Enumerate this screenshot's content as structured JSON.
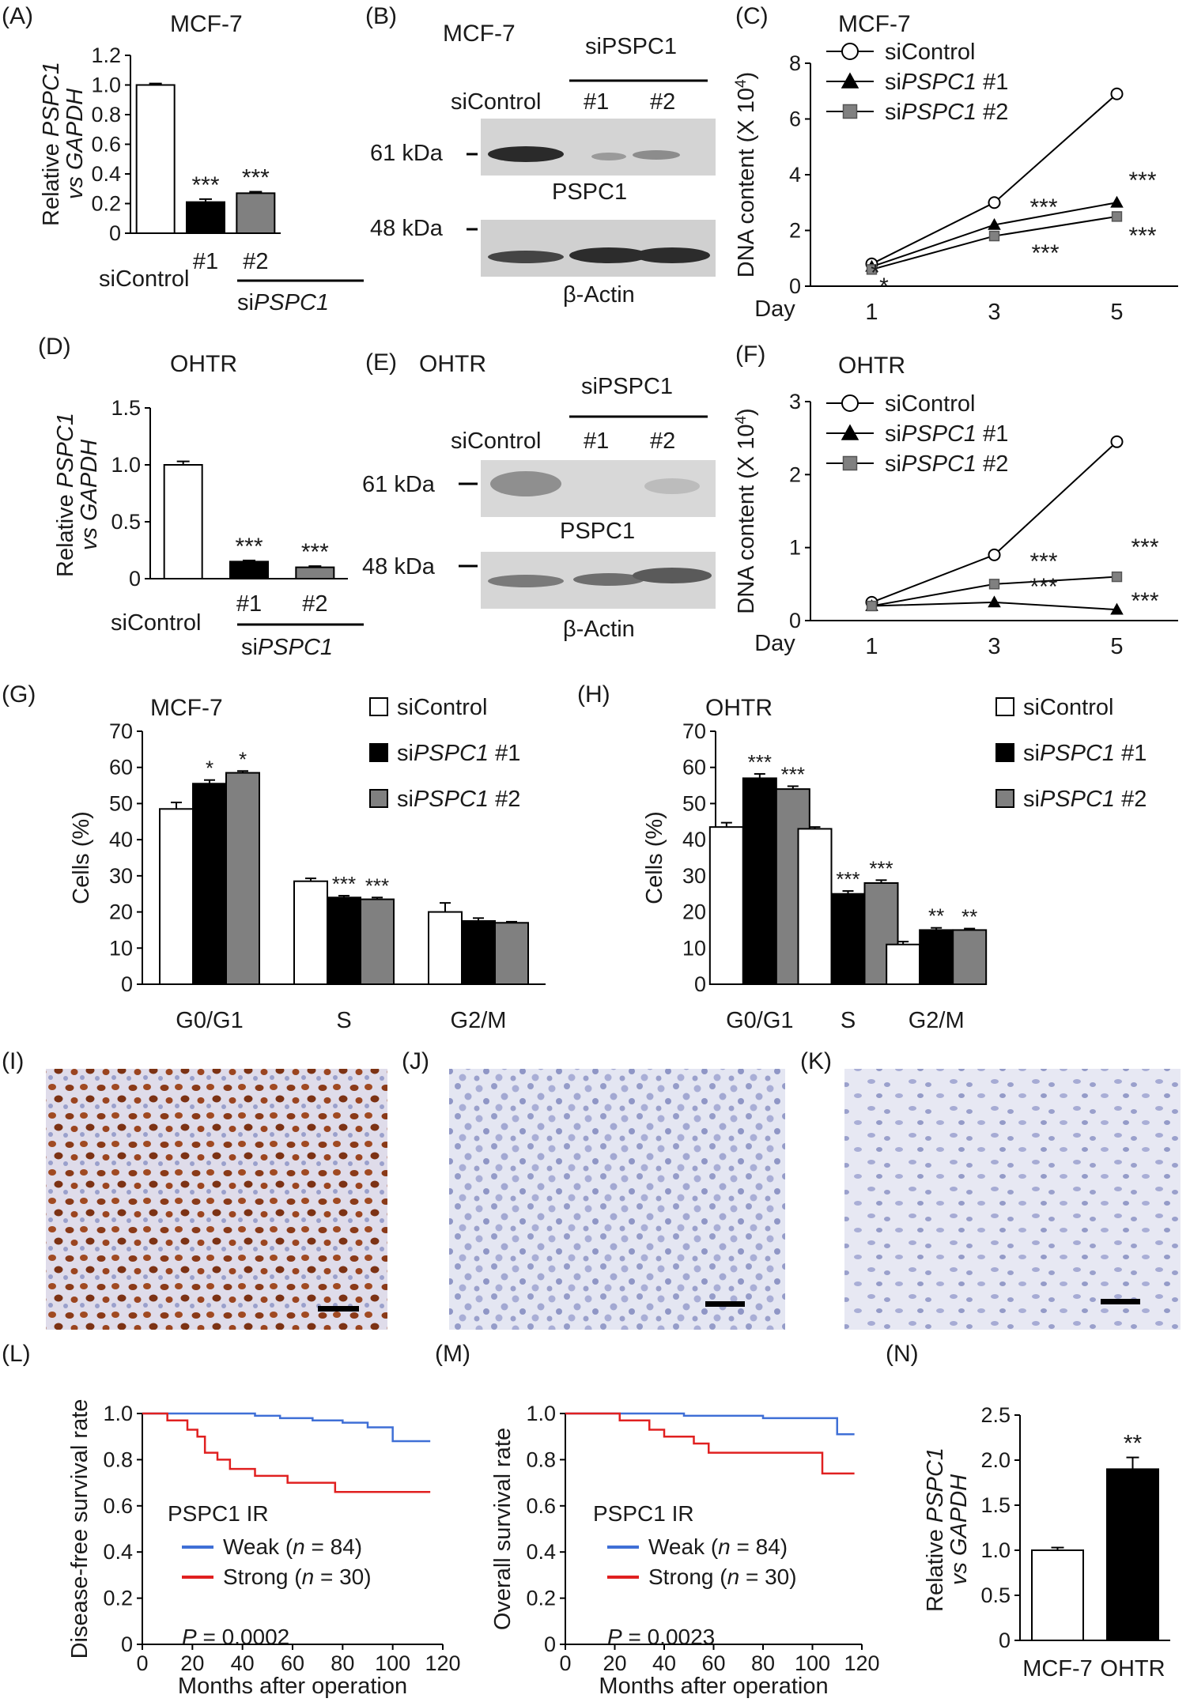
{
  "panels": {
    "A": {
      "label": "(A)",
      "title": "MCF-7"
    },
    "B": {
      "label": "(B)",
      "title": "MCF-7",
      "group_label": "siPSPC1",
      "lane_control": "siControl",
      "lane_1": "#1",
      "lane_2": "#2",
      "mw_top": "61 kDa",
      "mw_bottom": "48 kDa",
      "band_top": "PSPC1",
      "band_bottom": "β-Actin"
    },
    "C": {
      "label": "(C)"
    },
    "D": {
      "label": "(D)",
      "title": "OHTR"
    },
    "E": {
      "label": "(E)",
      "title": "OHTR",
      "group_label": "siPSPC1",
      "lane_control": "siControl",
      "lane_1": "#1",
      "lane_2": "#2",
      "mw_top": "61 kDa",
      "mw_bottom": "48 kDa",
      "band_top": "PSPC1",
      "band_bottom": "β-Actin"
    },
    "F": {
      "label": "(F)"
    },
    "G": {
      "label": "(G)"
    },
    "H": {
      "label": "(H)"
    },
    "I": {
      "label": "(I)"
    },
    "J": {
      "label": "(J)"
    },
    "K": {
      "label": "(K)"
    },
    "L": {
      "label": "(L)"
    },
    "M": {
      "label": "(M)"
    },
    "N": {
      "label": "(N)"
    }
  },
  "colors": {
    "black": "#000000",
    "gray": "#808080",
    "white": "#ffffff",
    "weak": "#3f6fd6",
    "strong": "#e02020",
    "ihc_bg": "#e4e6f2",
    "ihc_nuclei": "#8e95c8",
    "ihc_brown": "#8a3a18"
  },
  "chart_data": [
    {
      "id": "A",
      "type": "bar",
      "title": "MCF-7",
      "ylabel": "Relative PSPC1 vs GAPDH",
      "ylim": [
        0,
        1.2
      ],
      "yticks": [
        "0",
        "0.2",
        "0.4",
        "0.6",
        "0.8",
        "1.0",
        "1.2"
      ],
      "categories": [
        "siControl",
        "#1",
        "#2"
      ],
      "values": [
        1.0,
        0.21,
        0.27
      ],
      "errors": [
        0.01,
        0.02,
        0.01
      ],
      "stars": [
        "",
        "***",
        "***"
      ],
      "group_label": "siPSPC1",
      "control_label": "siControl"
    },
    {
      "id": "C",
      "type": "line",
      "title": "MCF-7",
      "ylabel": "DNA content (X 10^4)",
      "xlabel": "Day",
      "x": [
        1,
        3,
        5
      ],
      "ylim": [
        0,
        8
      ],
      "yticks": [
        "0",
        "2",
        "4",
        "6",
        "8"
      ],
      "series": [
        {
          "name": "siControl",
          "values": [
            0.8,
            3.0,
            6.9
          ]
        },
        {
          "name": "siPSPC1 #1",
          "values": [
            0.7,
            2.2,
            3.0
          ]
        },
        {
          "name": "siPSPC1 #2",
          "values": [
            0.6,
            1.8,
            2.5
          ]
        }
      ],
      "annotations": [
        "*",
        "*",
        "***",
        "***",
        "***",
        "***"
      ]
    },
    {
      "id": "D",
      "type": "bar",
      "title": "OHTR",
      "ylabel": "Relative PSPC1 vs GAPDH",
      "ylim": [
        0,
        1.5
      ],
      "yticks": [
        "0",
        "0.5",
        "1.0",
        "1.5"
      ],
      "categories": [
        "siControl",
        "#1",
        "#2"
      ],
      "values": [
        1.0,
        0.15,
        0.1
      ],
      "errors": [
        0.03,
        0.01,
        0.01
      ],
      "stars": [
        "",
        "***",
        "***"
      ],
      "group_label": "siPSPC1",
      "control_label": "siControl"
    },
    {
      "id": "F",
      "type": "line",
      "title": "OHTR",
      "ylabel": "DNA content (X 10^4)",
      "xlabel": "Day",
      "x": [
        1,
        3,
        5
      ],
      "ylim": [
        0,
        3
      ],
      "yticks": [
        "0",
        "1",
        "2",
        "3"
      ],
      "series": [
        {
          "name": "siControl",
          "values": [
            0.25,
            0.9,
            2.45
          ]
        },
        {
          "name": "siPSPC1 #1",
          "values": [
            0.2,
            0.25,
            0.15
          ]
        },
        {
          "name": "siPSPC1 #2",
          "values": [
            0.2,
            0.5,
            0.6
          ]
        }
      ],
      "annotations": [
        "***",
        "***",
        "***",
        "***"
      ]
    },
    {
      "id": "G",
      "type": "bar",
      "title": "MCF-7",
      "ylabel": "Cells (%)",
      "ylim": [
        0,
        70
      ],
      "yticks": [
        "0",
        "10",
        "20",
        "30",
        "40",
        "50",
        "60",
        "70"
      ],
      "categories": [
        "G0/G1",
        "S",
        "G2/M"
      ],
      "series": [
        {
          "name": "siControl",
          "values": [
            48.5,
            28.5,
            20
          ],
          "errors": [
            1.8,
            0.8,
            2.5
          ],
          "stars": [
            "",
            "",
            ""
          ]
        },
        {
          "name": "siPSPC1 #1",
          "values": [
            55.5,
            24,
            17.5
          ],
          "errors": [
            1,
            0.5,
            0.8
          ],
          "stars": [
            "*",
            "***",
            ""
          ]
        },
        {
          "name": "siPSPC1 #2",
          "values": [
            58.5,
            23.5,
            17
          ],
          "errors": [
            0.5,
            0.5,
            0.3
          ],
          "stars": [
            "*",
            "***",
            ""
          ]
        }
      ]
    },
    {
      "id": "H",
      "type": "bar",
      "title": "OHTR",
      "ylabel": "Cells (%)",
      "ylim": [
        0,
        70
      ],
      "yticks": [
        "0",
        "10",
        "20",
        "30",
        "40",
        "50",
        "60",
        "70"
      ],
      "categories": [
        "G0/G1",
        "S",
        "G2/M"
      ],
      "series": [
        {
          "name": "siControl",
          "values": [
            43.5,
            43,
            11
          ],
          "errors": [
            1.2,
            0.5,
            0.8
          ],
          "stars": [
            "",
            "",
            ""
          ]
        },
        {
          "name": "siPSPC1 #1",
          "values": [
            57,
            25,
            15
          ],
          "errors": [
            1.2,
            0.8,
            0.6
          ],
          "stars": [
            "***",
            "***",
            "**"
          ]
        },
        {
          "name": "siPSPC1 #2",
          "values": [
            54,
            28,
            15
          ],
          "errors": [
            0.8,
            0.8,
            0.4
          ],
          "stars": [
            "***",
            "***",
            "**"
          ]
        }
      ]
    },
    {
      "id": "L",
      "type": "line",
      "ylabel": "Disease-free survival rate",
      "xlabel": "Months after operation",
      "xlim": [
        0,
        120
      ],
      "ylim": [
        0,
        1.0
      ],
      "xticks": [
        "0",
        "20",
        "40",
        "60",
        "80",
        "100",
        "120"
      ],
      "yticks": [
        "0",
        "0.2",
        "0.4",
        "0.6",
        "0.8",
        "1.0"
      ],
      "legend_title": "PSPC1 IR",
      "pvalue": "P = 0.0002",
      "series": [
        {
          "name": "Weak (n = 84)",
          "steps": [
            [
              0,
              1.0
            ],
            [
              45,
              1.0
            ],
            [
              45,
              0.99
            ],
            [
              55,
              0.99
            ],
            [
              55,
              0.98
            ],
            [
              68,
              0.98
            ],
            [
              68,
              0.97
            ],
            [
              80,
              0.97
            ],
            [
              80,
              0.96
            ],
            [
              90,
              0.96
            ],
            [
              90,
              0.94
            ],
            [
              100,
              0.94
            ],
            [
              100,
              0.88
            ],
            [
              115,
              0.88
            ]
          ]
        },
        {
          "name": "Strong (n = 30)",
          "steps": [
            [
              0,
              1.0
            ],
            [
              10,
              1.0
            ],
            [
              10,
              0.97
            ],
            [
              18,
              0.97
            ],
            [
              18,
              0.93
            ],
            [
              22,
              0.93
            ],
            [
              22,
              0.9
            ],
            [
              25,
              0.9
            ],
            [
              25,
              0.83
            ],
            [
              30,
              0.83
            ],
            [
              30,
              0.8
            ],
            [
              35,
              0.8
            ],
            [
              35,
              0.76
            ],
            [
              45,
              0.76
            ],
            [
              45,
              0.73
            ],
            [
              58,
              0.73
            ],
            [
              58,
              0.7
            ],
            [
              77,
              0.7
            ],
            [
              77,
              0.66
            ],
            [
              115,
              0.66
            ]
          ]
        }
      ]
    },
    {
      "id": "M",
      "type": "line",
      "ylabel": "Overall survival rate",
      "xlabel": "Months after operation",
      "xlim": [
        0,
        120
      ],
      "ylim": [
        0,
        1.0
      ],
      "xticks": [
        "0",
        "20",
        "40",
        "60",
        "80",
        "100",
        "120"
      ],
      "yticks": [
        "0",
        "0.2",
        "0.4",
        "0.6",
        "0.8",
        "1.0"
      ],
      "legend_title": "PSPC1 IR",
      "pvalue": "P = 0.0023",
      "series": [
        {
          "name": "Weak (n = 84)",
          "steps": [
            [
              0,
              1.0
            ],
            [
              48,
              1.0
            ],
            [
              48,
              0.99
            ],
            [
              80,
              0.99
            ],
            [
              80,
              0.98
            ],
            [
              110,
              0.98
            ],
            [
              110,
              0.91
            ],
            [
              117,
              0.91
            ]
          ]
        },
        {
          "name": "Strong (n = 30)",
          "steps": [
            [
              0,
              1.0
            ],
            [
              22,
              1.0
            ],
            [
              22,
              0.97
            ],
            [
              34,
              0.97
            ],
            [
              34,
              0.93
            ],
            [
              40,
              0.93
            ],
            [
              40,
              0.9
            ],
            [
              52,
              0.9
            ],
            [
              52,
              0.87
            ],
            [
              58,
              0.87
            ],
            [
              58,
              0.83
            ],
            [
              104,
              0.83
            ],
            [
              104,
              0.74
            ],
            [
              117,
              0.74
            ]
          ]
        }
      ]
    },
    {
      "id": "N",
      "type": "bar",
      "ylabel": "Relative PSPC1 vs GAPDH",
      "ylim": [
        0,
        2.5
      ],
      "yticks": [
        "0",
        "0.5",
        "1.0",
        "1.5",
        "2.0",
        "2.5"
      ],
      "categories": [
        "MCF-7",
        "OHTR"
      ],
      "values": [
        1.0,
        1.9
      ],
      "errors": [
        0.03,
        0.13
      ],
      "stars": [
        "",
        "**"
      ]
    }
  ]
}
